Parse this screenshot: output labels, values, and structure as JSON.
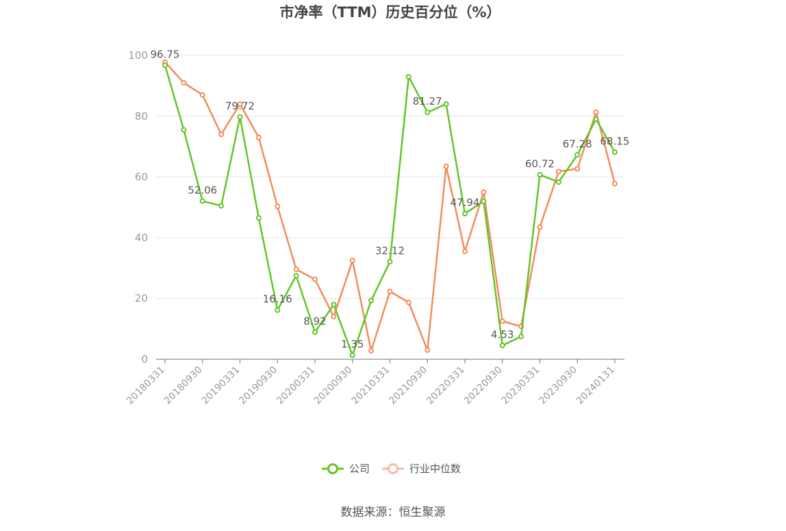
{
  "colors": {
    "company": "#62c426",
    "industry": "#f28c5a",
    "industry_legend": "#f6b9a4"
  },
  "source_text": "数据来源：恒生聚源",
  "chart_data": {
    "type": "line",
    "title": "市净率（TTM）历史百分位（%）",
    "xlabel": "",
    "ylabel": "",
    "ylim": [
      0,
      100
    ],
    "yticks": [
      0,
      20,
      40,
      60,
      80,
      100
    ],
    "grid": true,
    "legend_position": "bottom-center",
    "x": [
      "20180331",
      "20180630",
      "20180930",
      "20181231",
      "20190331",
      "20190630",
      "20190930",
      "20191231",
      "20200331",
      "20200630",
      "20200930",
      "20201231",
      "20210331",
      "20210630",
      "20210930",
      "20211231",
      "20220331",
      "20220630",
      "20220930",
      "20221231",
      "20230331",
      "20230630",
      "20230930",
      "20231231",
      "20240131"
    ],
    "x_tick_labels": [
      "20180331",
      "20180930",
      "20190331",
      "20190930",
      "20200331",
      "20200930",
      "20210331",
      "20210930",
      "20220331",
      "20220930",
      "20230331",
      "20230930",
      "20240131"
    ],
    "series": [
      {
        "name": "公司",
        "values": [
          96.75,
          75.5,
          52.06,
          50.5,
          79.72,
          46.5,
          16.16,
          27.5,
          8.92,
          18.0,
          1.35,
          19.3,
          32.12,
          93.0,
          81.27,
          84.0,
          47.94,
          52.0,
          4.53,
          7.5,
          60.72,
          58.3,
          67.28,
          79.0,
          68.15
        ],
        "labels": {
          "0": "96.75",
          "2": "52.06",
          "4": "79.72",
          "6": "16.16",
          "8": "8.92",
          "10": "1.35",
          "12": "32.12",
          "14": "81.27",
          "16": "47.94",
          "18": "4.53",
          "20": "60.72",
          "22": "67.28",
          "24": "68.15"
        }
      },
      {
        "name": "行业中位数",
        "values": [
          97.8,
          91.0,
          87.0,
          74.0,
          84.0,
          73.0,
          50.3,
          29.6,
          26.3,
          14.0,
          32.5,
          2.8,
          22.3,
          18.7,
          3.0,
          63.5,
          35.5,
          55.0,
          12.5,
          10.8,
          43.5,
          61.8,
          62.7,
          81.3,
          57.8
        ]
      }
    ]
  }
}
